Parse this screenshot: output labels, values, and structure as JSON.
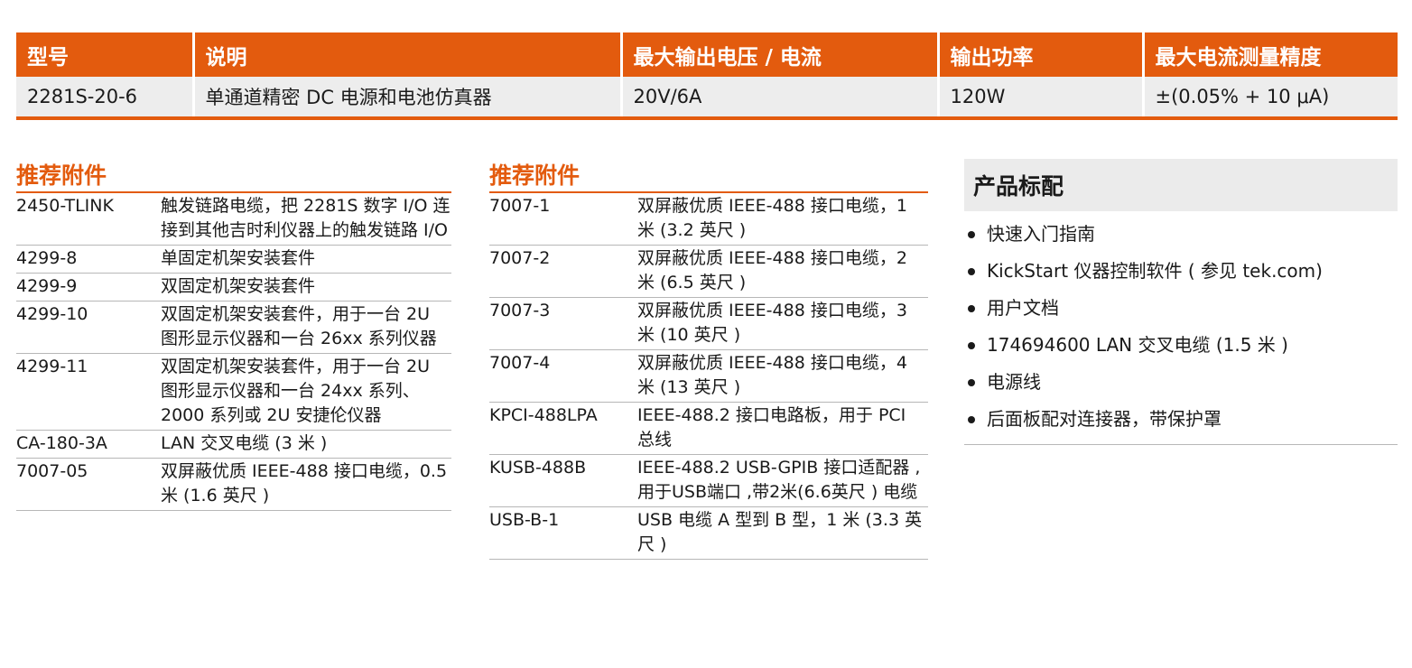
{
  "spec_table": {
    "headers": [
      "型号",
      "说明",
      "最大输出电压 / 电流",
      "输出功率",
      "最大电流测量精度"
    ],
    "row": [
      "2281S-20-6",
      "单通道精密 DC 电源和电池仿真器",
      "20V/6A",
      "120W",
      "±(0.05% + 10 μA)"
    ]
  },
  "accessories_left": {
    "title": "推荐附件",
    "items": [
      {
        "part": "2450-TLINK",
        "desc": "触发链路电缆，把 2281S 数字 I/O 连接到其他吉时利仪器上的触发链路 I/O"
      },
      {
        "part": "4299-8",
        "desc": "单固定机架安装套件"
      },
      {
        "part": "4299-9",
        "desc": "双固定机架安装套件"
      },
      {
        "part": "4299-10",
        "desc": "双固定机架安装套件，用于一台 2U 图形显示仪器和一台 26xx 系列仪器"
      },
      {
        "part": "4299-11",
        "desc": "双固定机架安装套件，用于一台 2U 图形显示仪器和一台 24xx 系列、2000 系列或 2U 安捷伦仪器"
      },
      {
        "part": "CA-180-3A",
        "desc": "LAN 交叉电缆 (3 米 )"
      },
      {
        "part": "7007-05",
        "desc": "双屏蔽优质 IEEE-488 接口电缆，0.5 米 (1.6 英尺 )"
      }
    ]
  },
  "accessories_right": {
    "title": "推荐附件",
    "items": [
      {
        "part": "7007-1",
        "desc": "双屏蔽优质 IEEE-488 接口电缆，1 米 (3.2 英尺 )"
      },
      {
        "part": "7007-2",
        "desc": "双屏蔽优质 IEEE-488 接口电缆，2 米 (6.5 英尺 )"
      },
      {
        "part": "7007-3",
        "desc": "双屏蔽优质 IEEE-488 接口电缆，3 米 (10 英尺 )"
      },
      {
        "part": "7007-4",
        "desc": "双屏蔽优质 IEEE-488 接口电缆，4 米 (13 英尺 )"
      },
      {
        "part": "KPCI-488LPA",
        "desc": "IEEE-488.2 接口电路板，用于 PCI 总线"
      },
      {
        "part": "KUSB-488B",
        "desc": "IEEE-488.2 USB-GPIB 接口适配器 ,用于USB端口 ,带2米(6.6英尺 ) 电缆"
      },
      {
        "part": "USB-B-1",
        "desc": "USB 电缆 A 型到 B 型，1 米 (3.3 英尺 )"
      }
    ]
  },
  "standard_items": {
    "title": "产品标配",
    "items": [
      "快速入门指南",
      "KickStart 仪器控制软件 ( 参见 tek.com)",
      "用户文档",
      "174694600 LAN 交叉电缆 (1.5 米 )",
      "电源线",
      "后面板配对连接器，带保护罩"
    ]
  },
  "colors": {
    "accent": "#e35b0e",
    "row_bg": "#ededed",
    "box_bg": "#ebebeb"
  }
}
